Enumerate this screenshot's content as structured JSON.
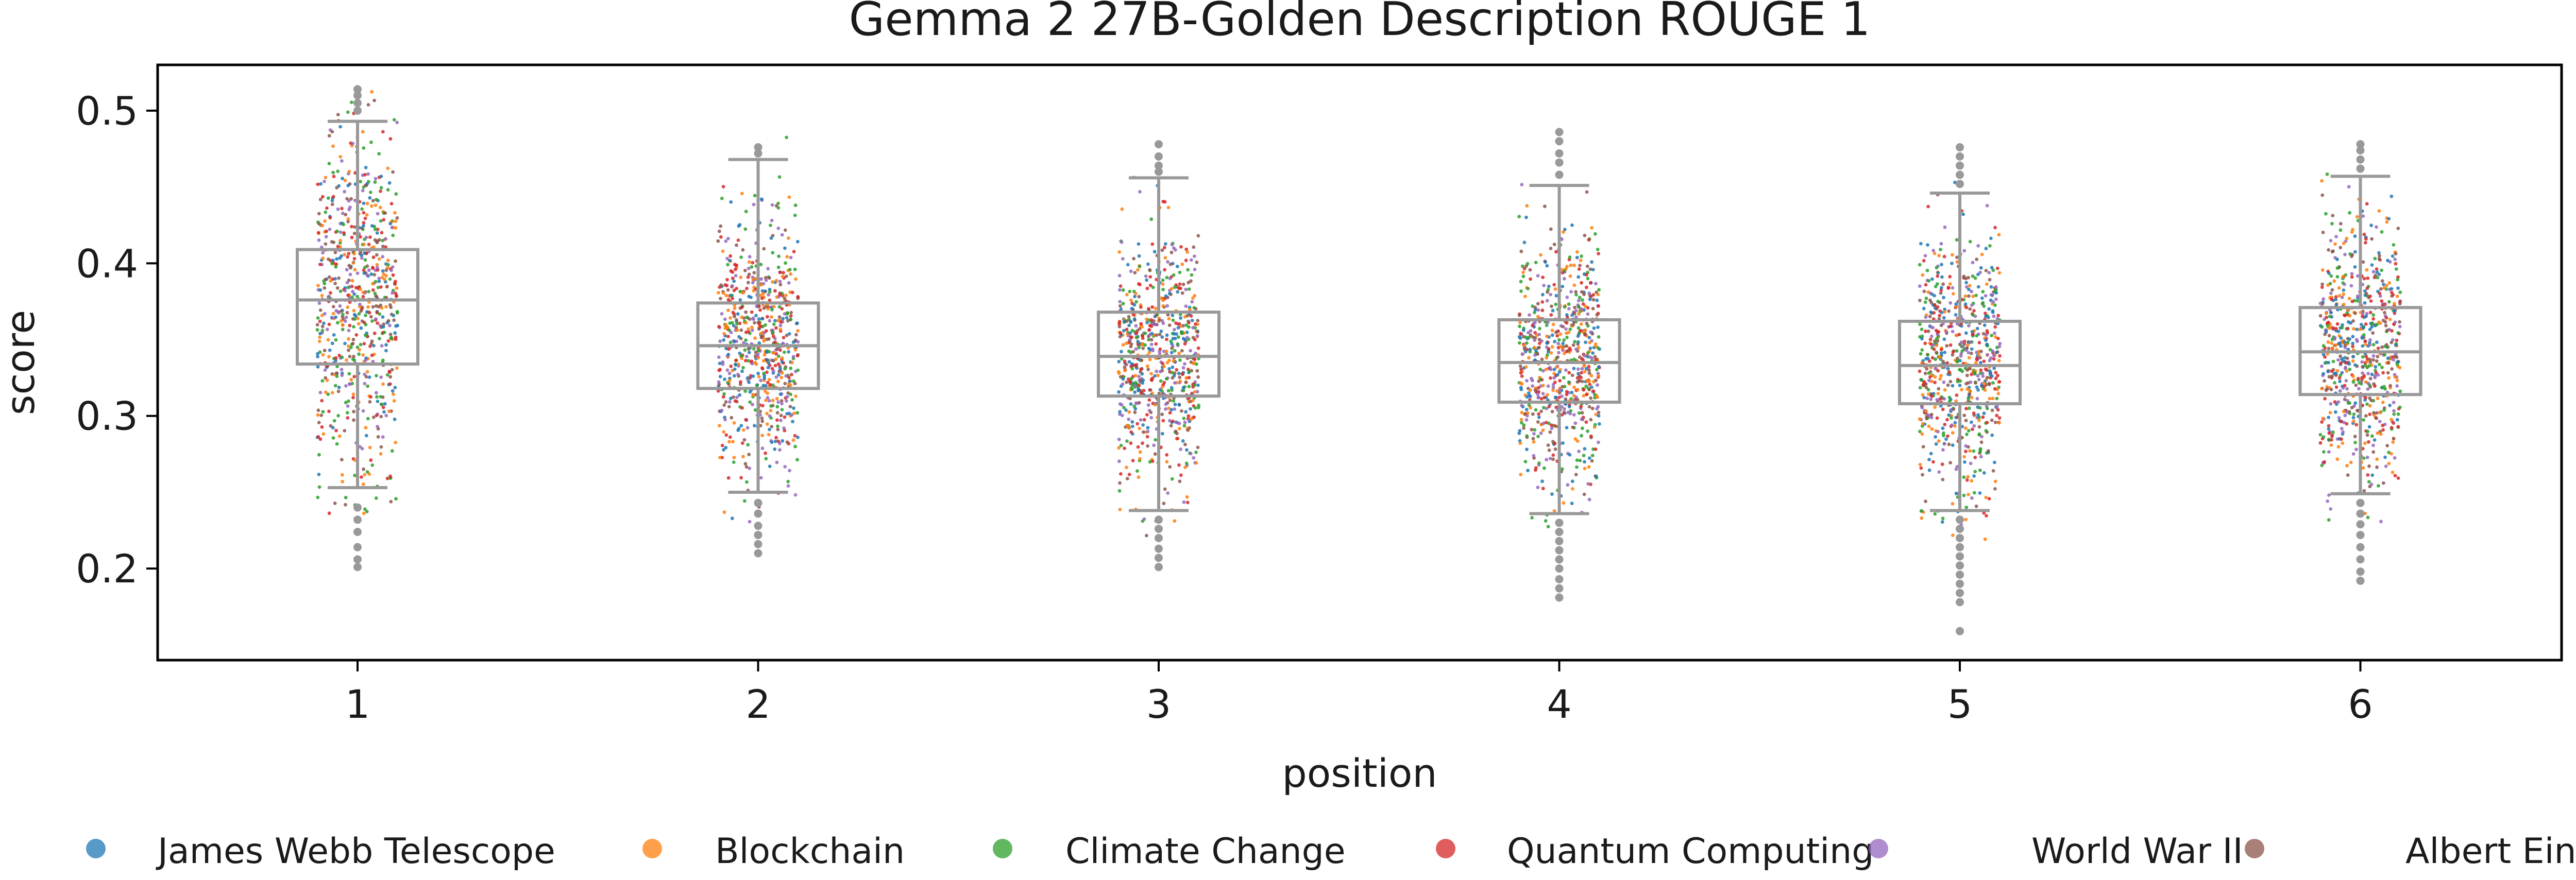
{
  "chart_data": {
    "type": "box+strip",
    "title": "Gemma 2 27B-Golden Description ROUGE 1",
    "xlabel": "position",
    "ylabel": "score",
    "categories": [
      "1",
      "2",
      "3",
      "4",
      "5",
      "6"
    ],
    "ylim": [
      0.14,
      0.53
    ],
    "yticks": [
      0.2,
      0.3,
      0.4,
      0.5
    ],
    "ytick_labels": [
      "0.2",
      "0.3",
      "0.4",
      "0.5"
    ],
    "grid": false,
    "legend_position": "bottom",
    "boxes": [
      {
        "position": "1",
        "q1": 0.334,
        "median": 0.376,
        "q3": 0.409,
        "whisker_low": 0.253,
        "whisker_high": 0.493,
        "outliers": [
          0.5,
          0.505,
          0.51,
          0.514,
          0.24,
          0.232,
          0.224,
          0.214,
          0.206,
          0.201
        ]
      },
      {
        "position": "2",
        "q1": 0.318,
        "median": 0.346,
        "q3": 0.374,
        "whisker_low": 0.25,
        "whisker_high": 0.468,
        "outliers": [
          0.472,
          0.476,
          0.243,
          0.236,
          0.228,
          0.222,
          0.216,
          0.21
        ]
      },
      {
        "position": "3",
        "q1": 0.313,
        "median": 0.339,
        "q3": 0.368,
        "whisker_low": 0.238,
        "whisker_high": 0.456,
        "outliers": [
          0.46,
          0.464,
          0.47,
          0.478,
          0.232,
          0.226,
          0.22,
          0.213,
          0.207,
          0.201
        ]
      },
      {
        "position": "4",
        "q1": 0.309,
        "median": 0.335,
        "q3": 0.363,
        "whisker_low": 0.236,
        "whisker_high": 0.451,
        "outliers": [
          0.458,
          0.466,
          0.472,
          0.48,
          0.486,
          0.23,
          0.224,
          0.218,
          0.212,
          0.206,
          0.2,
          0.193,
          0.187,
          0.181
        ]
      },
      {
        "position": "5",
        "q1": 0.308,
        "median": 0.333,
        "q3": 0.362,
        "whisker_low": 0.238,
        "whisker_high": 0.446,
        "outliers": [
          0.452,
          0.458,
          0.464,
          0.47,
          0.476,
          0.232,
          0.226,
          0.22,
          0.214,
          0.208,
          0.202,
          0.196,
          0.19,
          0.184,
          0.178,
          0.159
        ]
      },
      {
        "position": "6",
        "q1": 0.314,
        "median": 0.342,
        "q3": 0.371,
        "whisker_low": 0.249,
        "whisker_high": 0.457,
        "outliers": [
          0.462,
          0.468,
          0.474,
          0.478,
          0.243,
          0.236,
          0.229,
          0.222,
          0.214,
          0.206,
          0.198,
          0.192
        ]
      }
    ],
    "series": [
      {
        "name": "James Webb Telescope",
        "color": "#1f77b4"
      },
      {
        "name": "Blockchain",
        "color": "#ff7f0e"
      },
      {
        "name": "Climate Change",
        "color": "#2ca02c"
      },
      {
        "name": "Quantum Computing",
        "color": "#d62728"
      },
      {
        "name": "World War II",
        "color": "#9467bd"
      },
      {
        "name": "Albert Einstein",
        "color": "#8c564b"
      }
    ],
    "box_color": "#999999",
    "outlier_color": "#999999"
  }
}
